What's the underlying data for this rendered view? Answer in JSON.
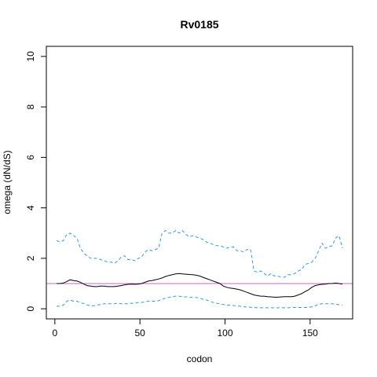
{
  "chart_data": {
    "type": "line",
    "title": "Rv0185",
    "xlabel": "codon",
    "ylabel": "omega (dN/dS)",
    "xlim": [
      -5,
      175
    ],
    "ylim": [
      -0.4,
      10.4
    ],
    "xticks": [
      0,
      50,
      100,
      150
    ],
    "yticks": [
      0,
      2,
      4,
      6,
      8,
      10
    ],
    "reference_line": {
      "y": 1,
      "color": "#cc66cc"
    },
    "grid": false,
    "series": [
      {
        "style": "dashed",
        "color": "#3399dd",
        "x": [
          1,
          3,
          5,
          7,
          9,
          11,
          13,
          15,
          17,
          19,
          21,
          23,
          25,
          27,
          29,
          31,
          33,
          35,
          37,
          39,
          41,
          43,
          45,
          47,
          49,
          51,
          53,
          55,
          57,
          59,
          61,
          63,
          65,
          67,
          69,
          71,
          73,
          75,
          77,
          79,
          81,
          83,
          85,
          87,
          89,
          91,
          93,
          95,
          97,
          99,
          101,
          103,
          105,
          107,
          109,
          111,
          113,
          115,
          117,
          119,
          121,
          123,
          125,
          127,
          129,
          131,
          133,
          135,
          137,
          139,
          141,
          143,
          145,
          147,
          149,
          151,
          153,
          155,
          157,
          159,
          161,
          163,
          165,
          167,
          169
        ],
        "y": [
          2.7,
          2.65,
          2.7,
          2.95,
          3.0,
          2.9,
          2.8,
          2.4,
          2.2,
          2.1,
          2.0,
          2.0,
          2.0,
          1.95,
          1.9,
          1.85,
          1.85,
          1.8,
          1.9,
          2.05,
          2.1,
          1.95,
          1.95,
          1.9,
          2.0,
          2.05,
          2.25,
          2.35,
          2.3,
          2.35,
          2.4,
          3.0,
          3.1,
          3.0,
          3.0,
          3.1,
          3.0,
          3.1,
          2.95,
          2.85,
          2.9,
          2.85,
          2.8,
          2.75,
          2.65,
          2.6,
          2.55,
          2.5,
          2.5,
          2.45,
          2.4,
          2.45,
          2.45,
          2.3,
          2.3,
          2.25,
          2.35,
          2.35,
          1.5,
          1.45,
          1.5,
          1.4,
          1.3,
          1.4,
          1.3,
          1.3,
          1.25,
          1.25,
          1.35,
          1.35,
          1.4,
          1.5,
          1.55,
          1.75,
          1.8,
          1.85,
          2.0,
          2.3,
          2.6,
          2.4,
          2.45,
          2.5,
          2.8,
          2.9,
          2.4
        ]
      },
      {
        "style": "solid",
        "color": "#000000",
        "x": [
          1,
          3,
          5,
          7,
          9,
          11,
          13,
          15,
          17,
          19,
          21,
          23,
          25,
          27,
          29,
          31,
          33,
          35,
          37,
          39,
          41,
          43,
          45,
          47,
          49,
          51,
          53,
          55,
          57,
          59,
          61,
          63,
          65,
          67,
          69,
          71,
          73,
          75,
          77,
          79,
          81,
          83,
          85,
          87,
          89,
          91,
          93,
          95,
          97,
          99,
          101,
          103,
          105,
          107,
          109,
          111,
          113,
          115,
          117,
          119,
          121,
          123,
          125,
          127,
          129,
          131,
          133,
          135,
          137,
          139,
          141,
          143,
          145,
          147,
          149,
          151,
          153,
          155,
          157,
          159,
          161,
          163,
          165,
          167,
          169
        ],
        "y": [
          1.0,
          1.0,
          1.02,
          1.08,
          1.15,
          1.12,
          1.1,
          1.05,
          0.98,
          0.92,
          0.9,
          0.88,
          0.88,
          0.9,
          0.9,
          0.88,
          0.88,
          0.88,
          0.9,
          0.92,
          0.95,
          0.97,
          0.98,
          0.97,
          0.98,
          1.0,
          1.05,
          1.1,
          1.12,
          1.15,
          1.18,
          1.22,
          1.28,
          1.32,
          1.35,
          1.38,
          1.4,
          1.38,
          1.37,
          1.36,
          1.35,
          1.33,
          1.3,
          1.25,
          1.2,
          1.15,
          1.1,
          1.05,
          1.0,
          0.9,
          0.85,
          0.82,
          0.8,
          0.78,
          0.75,
          0.7,
          0.65,
          0.6,
          0.55,
          0.52,
          0.5,
          0.5,
          0.48,
          0.47,
          0.46,
          0.46,
          0.47,
          0.48,
          0.48,
          0.48,
          0.5,
          0.55,
          0.6,
          0.68,
          0.75,
          0.85,
          0.92,
          0.95,
          0.97,
          0.98,
          1.0,
          1.0,
          1.02,
          1.0,
          0.98
        ]
      },
      {
        "style": "dashed",
        "color": "#3399dd",
        "x": [
          1,
          3,
          5,
          7,
          9,
          11,
          13,
          15,
          17,
          19,
          21,
          23,
          25,
          27,
          29,
          31,
          33,
          35,
          37,
          39,
          41,
          43,
          45,
          47,
          49,
          51,
          53,
          55,
          57,
          59,
          61,
          63,
          65,
          67,
          69,
          71,
          73,
          75,
          77,
          79,
          81,
          83,
          85,
          87,
          89,
          91,
          93,
          95,
          97,
          99,
          101,
          103,
          105,
          107,
          109,
          111,
          113,
          115,
          117,
          119,
          121,
          123,
          125,
          127,
          129,
          131,
          133,
          135,
          137,
          139,
          141,
          143,
          145,
          147,
          149,
          151,
          153,
          155,
          157,
          159,
          161,
          163,
          165,
          167,
          169
        ],
        "y": [
          0.1,
          0.1,
          0.15,
          0.3,
          0.35,
          0.3,
          0.3,
          0.25,
          0.2,
          0.15,
          0.12,
          0.12,
          0.15,
          0.17,
          0.2,
          0.2,
          0.2,
          0.2,
          0.22,
          0.2,
          0.2,
          0.2,
          0.22,
          0.22,
          0.25,
          0.25,
          0.28,
          0.3,
          0.3,
          0.3,
          0.32,
          0.38,
          0.42,
          0.45,
          0.48,
          0.5,
          0.5,
          0.48,
          0.47,
          0.46,
          0.45,
          0.45,
          0.42,
          0.38,
          0.35,
          0.3,
          0.25,
          0.22,
          0.2,
          0.17,
          0.15,
          0.14,
          0.13,
          0.12,
          0.1,
          0.08,
          0.07,
          0.06,
          0.05,
          0.04,
          0.04,
          0.04,
          0.04,
          0.04,
          0.04,
          0.04,
          0.04,
          0.04,
          0.04,
          0.05,
          0.05,
          0.05,
          0.05,
          0.05,
          0.05,
          0.08,
          0.12,
          0.18,
          0.2,
          0.2,
          0.2,
          0.2,
          0.18,
          0.16,
          0.15
        ]
      }
    ]
  }
}
